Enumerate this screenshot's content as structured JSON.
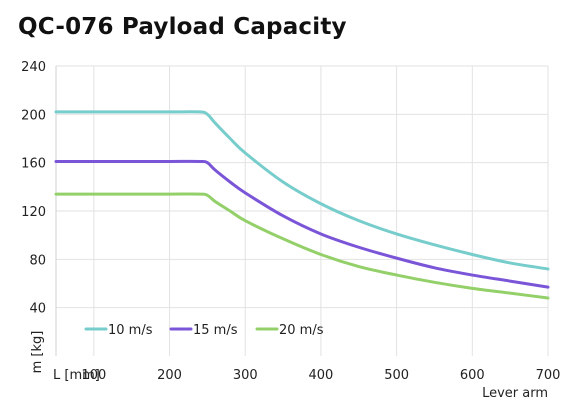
{
  "chart_data": {
    "type": "line",
    "title": "QC-076 Payload Capacity",
    "xlabel": "Lever arm",
    "ylabel": "m [kg]",
    "x_unit_label": "L [mm]",
    "xlim": [
      50,
      700
    ],
    "ylim": [
      0,
      240
    ],
    "x_ticks": [
      100,
      200,
      300,
      400,
      500,
      600,
      700
    ],
    "y_ticks": [
      40,
      80,
      120,
      160,
      200,
      240
    ],
    "grid": true,
    "legend_position": "bottom-left",
    "series": [
      {
        "name": "10 m/s",
        "color": "#76cdcb",
        "x": [
          50,
          100,
          150,
          200,
          240,
          250,
          260,
          280,
          300,
          350,
          400,
          450,
          500,
          550,
          600,
          650,
          700
        ],
        "y": [
          202,
          202,
          202,
          202,
          202,
          200,
          193,
          180,
          168,
          144,
          126,
          112,
          101,
          92,
          84,
          77,
          72
        ]
      },
      {
        "name": "15 m/s",
        "color": "#7b55d8",
        "x": [
          50,
          100,
          150,
          200,
          240,
          250,
          260,
          280,
          300,
          350,
          400,
          450,
          500,
          550,
          600,
          650,
          700
        ],
        "y": [
          161,
          161,
          161,
          161,
          161,
          160,
          154,
          144,
          135,
          116,
          101,
          90,
          81,
          73,
          67,
          62,
          57
        ]
      },
      {
        "name": "20 m/s",
        "color": "#94d06a",
        "x": [
          50,
          100,
          150,
          200,
          240,
          250,
          260,
          280,
          300,
          350,
          400,
          450,
          500,
          550,
          600,
          650,
          700
        ],
        "y": [
          134,
          134,
          134,
          134,
          134,
          133,
          128,
          120,
          112,
          97,
          84,
          74,
          67,
          61,
          56,
          52,
          48
        ]
      }
    ]
  }
}
